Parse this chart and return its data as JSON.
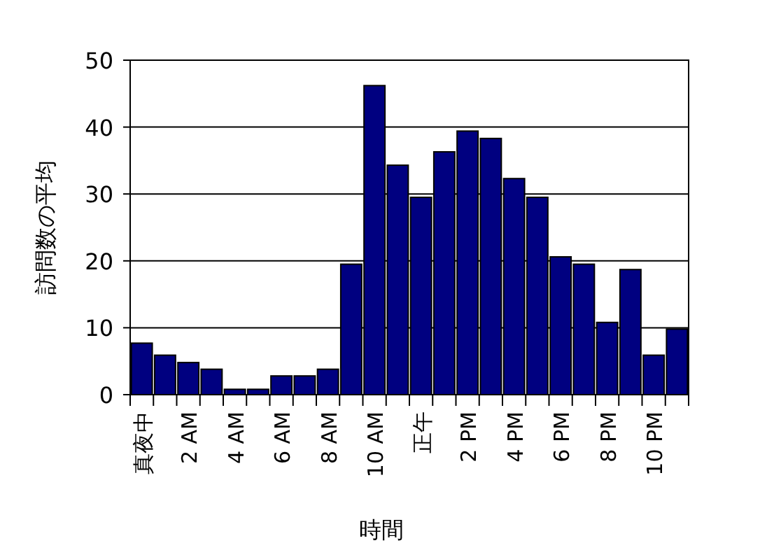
{
  "chart_data": {
    "type": "bar",
    "xlabel": "時間",
    "ylabel": "訪問数の平均",
    "categories": [
      "真夜中",
      null,
      "2 AM",
      null,
      "4 AM",
      null,
      "6 AM",
      null,
      "8 AM",
      null,
      "10 AM",
      null,
      "正午",
      null,
      "2 PM",
      null,
      "4 PM",
      null,
      "6 PM",
      null,
      "8 PM",
      null,
      "10 PM",
      null
    ],
    "values": [
      7.7,
      5.9,
      4.8,
      3.8,
      0.8,
      0.8,
      2.8,
      2.8,
      3.8,
      19.5,
      46.2,
      34.3,
      29.5,
      36.3,
      39.4,
      38.3,
      32.3,
      29.5,
      20.6,
      19.5,
      10.8,
      18.7,
      5.9,
      9.8
    ],
    "color": "#000080",
    "ylim": [
      0,
      50
    ],
    "yticks": [
      0,
      10,
      20,
      30,
      40,
      50
    ],
    "grid": "y"
  }
}
